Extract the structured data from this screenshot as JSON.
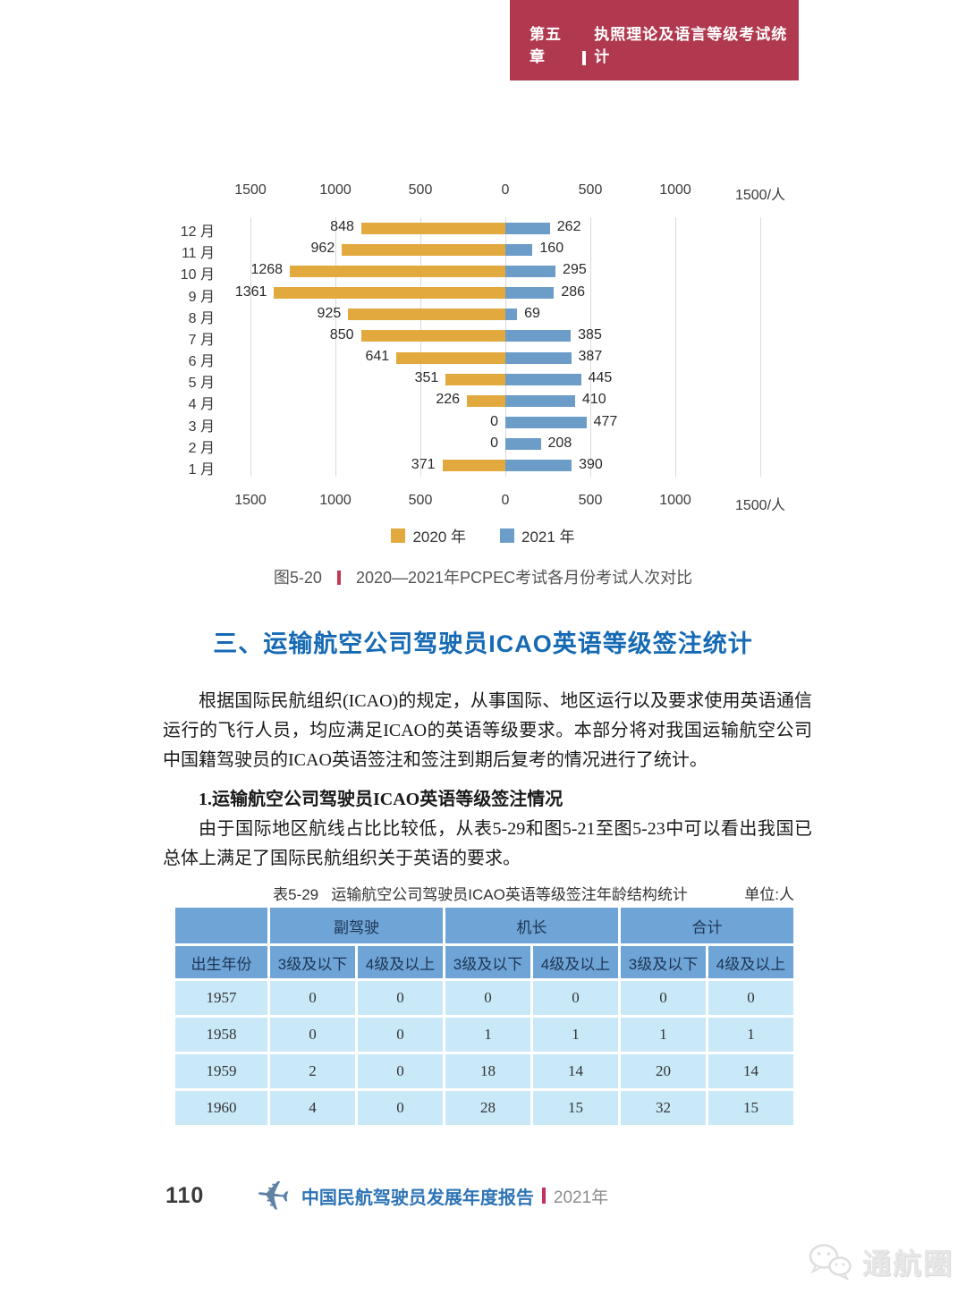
{
  "header": {
    "chapter": "第五章",
    "title": "执照理论及语言等级考试统计"
  },
  "chart_data": {
    "type": "bar",
    "orientation": "horizontal-diverging",
    "caption_label": "图5-20",
    "caption_text": "2020—2021年PCPEC考试各月份考试人次对比",
    "axis_ticks": [
      "1500",
      "1000",
      "500",
      "0",
      "500",
      "1000",
      "1500/人"
    ],
    "axis_tick_values": [
      -1500,
      -1000,
      -500,
      0,
      500,
      1000,
      1500
    ],
    "xlim": [
      -1500,
      1500
    ],
    "grid": true,
    "legend_position": "bottom",
    "categories": [
      "12 月",
      "11 月",
      "10 月",
      "9 月",
      "8 月",
      "7 月",
      "6 月",
      "5 月",
      "4 月",
      "3 月",
      "2 月",
      "1 月"
    ],
    "series": [
      {
        "name": "2020 年",
        "color": "#E2A93E",
        "direction": "left",
        "values": [
          848,
          962,
          1268,
          1361,
          925,
          850,
          641,
          351,
          226,
          0,
          0,
          371
        ]
      },
      {
        "name": "2021 年",
        "color": "#6C9DC9",
        "direction": "right",
        "values": [
          262,
          160,
          295,
          286,
          69,
          385,
          387,
          445,
          410,
          477,
          208,
          390
        ]
      }
    ]
  },
  "section": {
    "title": "三、运输航空公司驾驶员ICAO英语等级签注统计",
    "paragraph1": "根据国际民航组织(ICAO)的规定，从事国际、地区运行以及要求使用英语通信运行的飞行人员，均应满足ICAO的英语等级要求。本部分将对我国运输航空公司中国籍驾驶员的ICAO英语签注和签注到期后复考的情况进行了统计。",
    "sub_heading": "1.运输航空公司驾驶员ICAO英语等级签注情况",
    "paragraph2": "由于国际地区航线占比比较低，从表5-29和图5-21至图5-23中可以看出我国已总体上满足了国际民航组织关于英语的要求。"
  },
  "table": {
    "caption_label": "表5-29",
    "caption": "运输航空公司驾驶员ICAO英语等级签注年龄结构统计",
    "unit": "单位:人",
    "group_headers": [
      "副驾驶",
      "机长",
      "合计"
    ],
    "col_headers": [
      "出生年份",
      "3级及以下",
      "4级及以上",
      "3级及以下",
      "4级及以上",
      "3级及以下",
      "4级及以上"
    ],
    "rows": [
      [
        "1957",
        0,
        0,
        0,
        0,
        0,
        0
      ],
      [
        "1958",
        0,
        0,
        1,
        1,
        1,
        1
      ],
      [
        "1959",
        2,
        0,
        18,
        14,
        20,
        14
      ],
      [
        "1960",
        4,
        0,
        28,
        15,
        32,
        15
      ]
    ]
  },
  "footer": {
    "page_number": "110",
    "report_title": "中国民航驾驶员发展年度报告",
    "year": "2021年"
  },
  "watermark": {
    "text": "通航圈"
  },
  "colors": {
    "banner_red": "#B0394F",
    "caption_separator_red": "#C23B54",
    "footer_separator_red": "#C43062",
    "section_title_blue": "#166AB4",
    "footer_title_blue": "#2E74B5",
    "bar_2020_yellow": "#E2A93E",
    "bar_2021_blue": "#6C9DC9",
    "table_header_blue": "#6FA4D6",
    "table_cell_blue": "#C9E9F9",
    "gridline_gray": "#D9D9D9"
  }
}
